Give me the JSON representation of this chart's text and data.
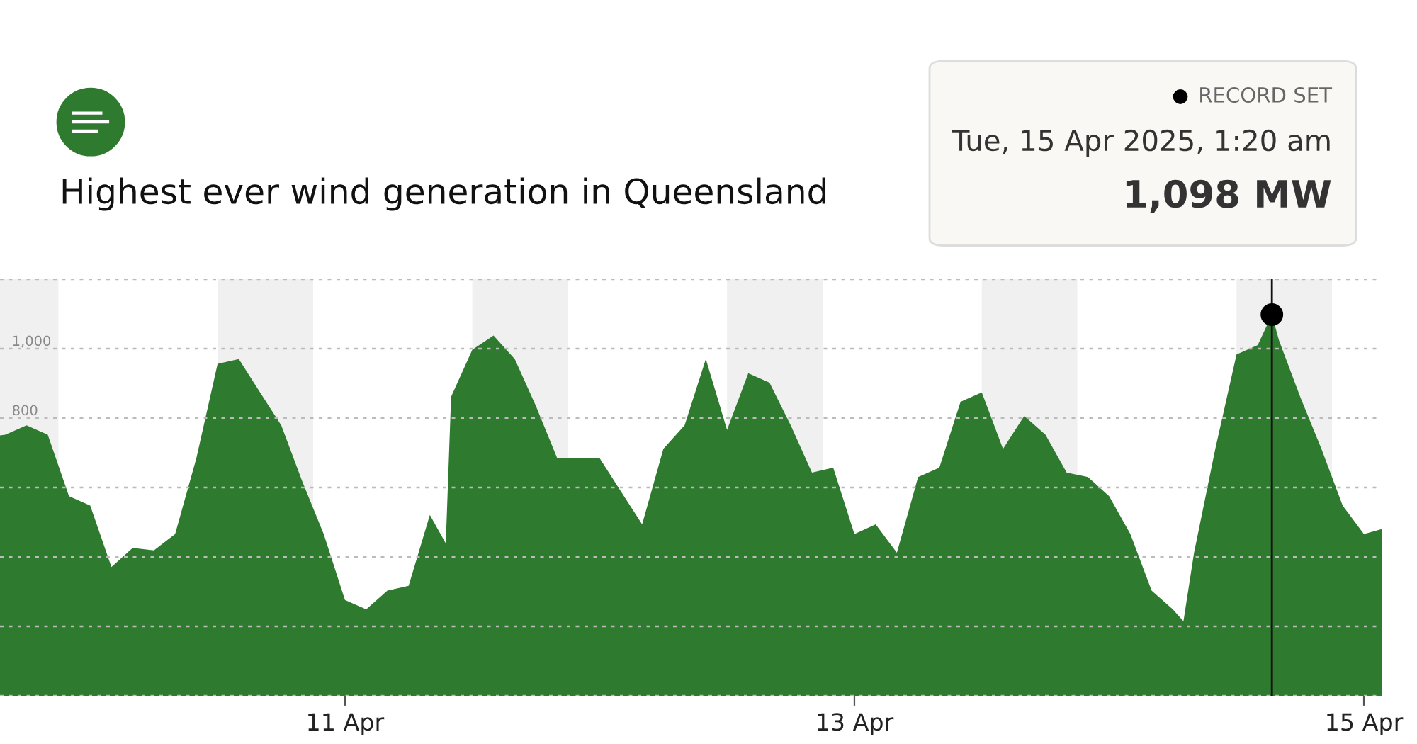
{
  "chart_data": {
    "type": "area",
    "title": "Highest ever wind generation in Queensland",
    "annotations": [
      "RECORD SET",
      "Tue, 15 Apr 2025, 1:20 am",
      "1,098 MW"
    ],
    "xlim": [
      "2025-04-09T15:30",
      "2025-04-15T01:40"
    ],
    "xticks": [
      {
        "value": "2025-04-11",
        "label": "11 Apr"
      },
      {
        "value": "2025-04-13",
        "label": "13 Apr"
      },
      {
        "value": "2025-04-15",
        "label": "15 Apr"
      }
    ],
    "ylim": [
      0,
      1200
    ],
    "yticks": [
      {
        "value": 0,
        "label": null
      },
      {
        "value": 200,
        "label": null
      },
      {
        "value": 400,
        "label": null
      },
      {
        "value": 600,
        "label": null
      },
      {
        "value": 800,
        "label": "800"
      },
      {
        "value": 1000,
        "label": "1,000"
      },
      {
        "value": 1200,
        "label": null
      }
    ],
    "grid": "y",
    "legend": false,
    "bands": [
      {
        "axis": "x",
        "from": "2025-04-09T12:00",
        "to": "2025-04-09T21:00",
        "color": "#f0f0f0"
      },
      {
        "axis": "x",
        "from": "2025-04-10T12:00",
        "to": "2025-04-10T21:00",
        "color": "#f0f0f0"
      },
      {
        "axis": "x",
        "from": "2025-04-11T12:00",
        "to": "2025-04-11T21:00",
        "color": "#f0f0f0"
      },
      {
        "axis": "x",
        "from": "2025-04-12T12:00",
        "to": "2025-04-12T21:00",
        "color": "#f0f0f0"
      },
      {
        "axis": "x",
        "from": "2025-04-13T12:00",
        "to": "2025-04-13T21:00",
        "color": "#f0f0f0"
      },
      {
        "axis": "x",
        "from": "2025-04-14T12:00",
        "to": "2025-04-14T21:00",
        "color": "#f0f0f0"
      }
    ],
    "ref_lines": [
      {
        "axis": "x",
        "value": "2025-04-14T15:20",
        "color": "#111111",
        "line_style": "solid"
      }
    ],
    "series": [
      {
        "color": "#2e7a2e",
        "x": [
          "2025-04-09T15:30",
          "2025-04-09T16:00",
          "2025-04-09T18:00",
          "2025-04-09T20:00",
          "2025-04-09T22:00",
          "2025-04-10T00:00",
          "2025-04-10T02:00",
          "2025-04-10T04:00",
          "2025-04-10T06:00",
          "2025-04-10T08:00",
          "2025-04-10T10:00",
          "2025-04-10T12:00",
          "2025-04-10T14:00",
          "2025-04-10T16:00",
          "2025-04-10T18:00",
          "2025-04-10T20:00",
          "2025-04-10T22:00",
          "2025-04-11T00:00",
          "2025-04-11T02:00",
          "2025-04-11T04:00",
          "2025-04-11T06:00",
          "2025-04-11T08:00",
          "2025-04-11T09:30",
          "2025-04-11T10:00",
          "2025-04-11T12:00",
          "2025-04-11T14:00",
          "2025-04-11T16:00",
          "2025-04-11T18:00",
          "2025-04-11T20:00",
          "2025-04-11T22:00",
          "2025-04-12T00:00",
          "2025-04-12T02:00",
          "2025-04-12T04:00",
          "2025-04-12T06:00",
          "2025-04-12T08:00",
          "2025-04-12T10:00",
          "2025-04-12T12:00",
          "2025-04-12T14:00",
          "2025-04-12T16:00",
          "2025-04-12T18:00",
          "2025-04-12T20:00",
          "2025-04-12T22:00",
          "2025-04-13T00:00",
          "2025-04-13T02:00",
          "2025-04-13T04:00",
          "2025-04-13T06:00",
          "2025-04-13T08:00",
          "2025-04-13T10:00",
          "2025-04-13T12:00",
          "2025-04-13T14:00",
          "2025-04-13T16:00",
          "2025-04-13T18:00",
          "2025-04-13T20:00",
          "2025-04-13T22:00",
          "2025-04-14T00:00",
          "2025-04-14T02:00",
          "2025-04-14T04:00",
          "2025-04-14T06:00",
          "2025-04-14T07:00",
          "2025-04-14T08:00",
          "2025-04-14T10:00",
          "2025-04-14T12:00",
          "2025-04-14T14:00",
          "2025-04-14T15:20",
          "2025-04-14T16:00",
          "2025-04-14T18:00",
          "2025-04-14T20:00",
          "2025-04-14T22:00",
          "2025-04-15T00:00",
          "2025-04-15T01:40"
        ],
        "values": [
          750,
          752,
          779,
          752,
          575,
          548,
          371,
          426,
          419,
          466,
          684,
          956,
          970,
          874,
          779,
          616,
          466,
          276,
          249,
          303,
          317,
          521,
          439,
          861,
          997,
          1038,
          970,
          834,
          684,
          684,
          684,
          589,
          494,
          711,
          779,
          970,
          766,
          929,
          902,
          779,
          643,
          657,
          466,
          494,
          412,
          630,
          657,
          847,
          874,
          711,
          806,
          752,
          643,
          630,
          575,
          466,
          303,
          249,
          215,
          412,
          711,
          983,
          1010,
          1098,
          1024,
          861,
          711,
          548,
          466,
          480
        ]
      },
      {
        "type": "scatter",
        "color": "#000000",
        "marker": "circle",
        "x": [
          "2025-04-14T15:20"
        ],
        "values": [
          1098
        ]
      }
    ]
  }
}
